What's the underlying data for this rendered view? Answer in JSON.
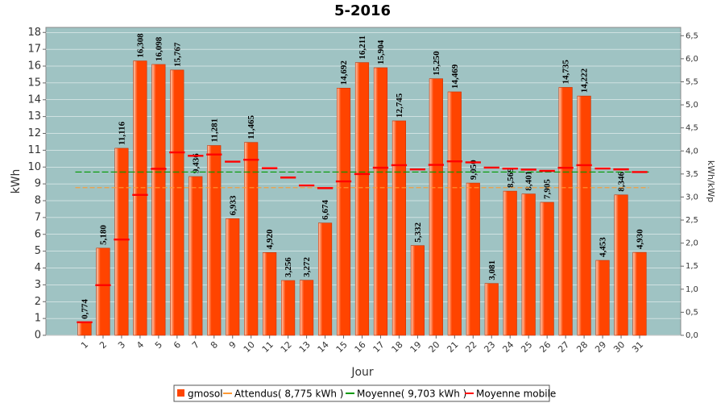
{
  "chart_data": {
    "type": "bar",
    "title": "5-2016",
    "x_label": "Jour",
    "y_label": "kWh",
    "y2_label": "kWh/kWp",
    "categories": [
      "1",
      "2",
      "3",
      "4",
      "5",
      "6",
      "7",
      "8",
      "9",
      "10",
      "11",
      "12",
      "13",
      "14",
      "15",
      "16",
      "17",
      "18",
      "19",
      "20",
      "21",
      "22",
      "23",
      "24",
      "25",
      "26",
      "27",
      "28",
      "29",
      "30",
      "31"
    ],
    "series": [
      {
        "name": "gmosol",
        "color": "#ff4400",
        "values": [
          0.774,
          5.18,
          11.116,
          16.308,
          16.098,
          15.767,
          9.436,
          11.281,
          6.933,
          11.465,
          4.92,
          3.256,
          3.272,
          6.674,
          14.692,
          16.211,
          15.904,
          12.745,
          5.332,
          15.25,
          14.469,
          9.05,
          3.081,
          8.569,
          8.401,
          7.905,
          14.735,
          14.222,
          4.453,
          8.346,
          4.93
        ],
        "value_labels": [
          "0,774",
          "5,180",
          "11,116",
          "16,308",
          "16,098",
          "15,767",
          "9,436",
          "11,281",
          "6,933",
          "11,465",
          "4,920",
          "3,256",
          "3,272",
          "6,674",
          "14,692",
          "16,211",
          "15,904",
          "12,745",
          "5,332",
          "15,250",
          "14,469",
          "9,050",
          "3,081",
          "8,569",
          "8,401",
          "7,905",
          "14,735",
          "14,222",
          "4,453",
          "8,346",
          "4,930"
        ]
      },
      {
        "name": "Attendus( 8,775 kWh )",
        "color": "#ff9933",
        "value": 8.775
      },
      {
        "name": "Moyenne( 9,703 kWh )",
        "color": "#009900",
        "value": 9.703
      },
      {
        "name": "Moyenne mobile",
        "color": "#ff0000",
        "values": [
          0.774,
          2.977,
          5.69,
          8.345,
          9.895,
          10.874,
          10.668,
          10.745,
          10.321,
          10.436,
          9.934,
          9.378,
          8.908,
          8.749,
          9.145,
          9.586,
          9.958,
          10.113,
          9.861,
          10.131,
          10.337,
          10.279,
          9.966,
          9.908,
          9.847,
          9.773,
          9.956,
          10.109,
          9.914,
          9.862,
          9.702
        ]
      }
    ],
    "ylim": [
      0,
      18.3
    ],
    "yticks": [
      0,
      1,
      2,
      3,
      4,
      5,
      6,
      7,
      8,
      9,
      10,
      11,
      12,
      13,
      14,
      15,
      16,
      17,
      18
    ],
    "y2lim": [
      0,
      6.68
    ],
    "y2ticks": [
      {
        "value": 0,
        "label": "0,0"
      },
      {
        "value": 0.5,
        "label": "0,5"
      },
      {
        "value": 1,
        "label": "1,0"
      },
      {
        "value": 1.5,
        "label": "1,5"
      },
      {
        "value": 2,
        "label": "2,0"
      },
      {
        "value": 2.5,
        "label": "2,5"
      },
      {
        "value": 3,
        "label": "3,0"
      },
      {
        "value": 3.5,
        "label": "3,5"
      },
      {
        "value": 4,
        "label": "4,0"
      },
      {
        "value": 4.5,
        "label": "4,5"
      },
      {
        "value": 5,
        "label": "5,0"
      },
      {
        "value": 5.5,
        "label": "5,5"
      },
      {
        "value": 6,
        "label": "6,0"
      },
      {
        "value": 6.5,
        "label": "6,5"
      }
    ],
    "grid": true,
    "legend": "bottom",
    "background": "#9fc3c3"
  }
}
